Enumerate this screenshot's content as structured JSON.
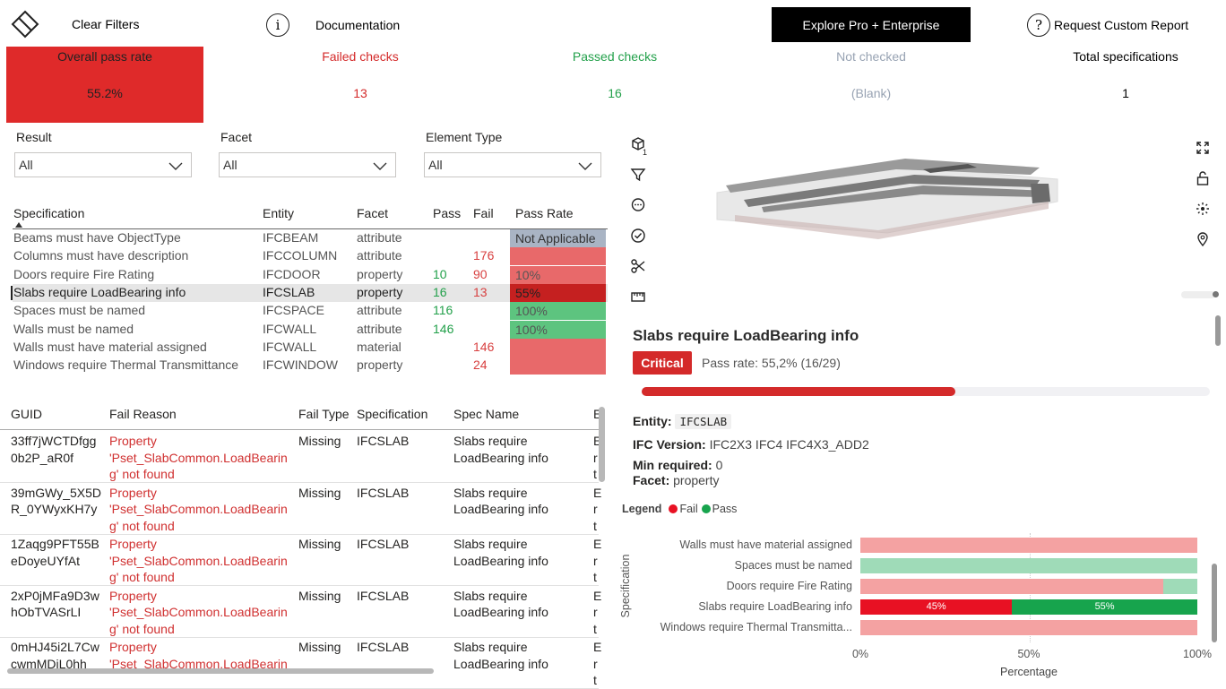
{
  "toolbar": {
    "clear_filters": "Clear Filters",
    "documentation": "Documentation",
    "explore_pro": "Explore Pro + Enterprise",
    "request_report": "Request Custom Report"
  },
  "kpis": {
    "overall": {
      "label": "Overall pass rate",
      "value": "55.2%"
    },
    "failed": {
      "label": "Failed checks",
      "value": "13"
    },
    "passed": {
      "label": "Passed checks",
      "value": "16"
    },
    "not_checked": {
      "label": "Not checked",
      "value": "(Blank)"
    },
    "total": {
      "label": "Total specifications",
      "value": "1"
    }
  },
  "slicers": {
    "result": {
      "label": "Result",
      "value": "All"
    },
    "facet": {
      "label": "Facet",
      "value": "All"
    },
    "element_type": {
      "label": "Element Type",
      "value": "All"
    }
  },
  "spec_table": {
    "headers": {
      "specification": "Specification",
      "entity": "Entity",
      "facet": "Facet",
      "pass": "Pass",
      "fail": "Fail",
      "pass_rate": "Pass Rate"
    },
    "rows": [
      {
        "spec": "Beams must have ObjectType",
        "entity": "IFCBEAM",
        "facet": "attribute",
        "pass": "",
        "fail": "",
        "rate": "Not Applicable"
      },
      {
        "spec": "Columns must have description",
        "entity": "IFCCOLUMN",
        "facet": "attribute",
        "pass": "",
        "fail": "176",
        "rate": ""
      },
      {
        "spec": "Doors require Fire Rating",
        "entity": "IFCDOOR",
        "facet": "property",
        "pass": "10",
        "fail": "90",
        "rate": "10%"
      },
      {
        "spec": "Slabs require LoadBearing info",
        "entity": "IFCSLAB",
        "facet": "property",
        "pass": "16",
        "fail": "13",
        "rate": "55%"
      },
      {
        "spec": "Spaces must be named",
        "entity": "IFCSPACE",
        "facet": "attribute",
        "pass": "116",
        "fail": "",
        "rate": "100%"
      },
      {
        "spec": "Walls must be named",
        "entity": "IFCWALL",
        "facet": "attribute",
        "pass": "146",
        "fail": "",
        "rate": "100%"
      },
      {
        "spec": "Walls must have material assigned",
        "entity": "IFCWALL",
        "facet": "material",
        "pass": "",
        "fail": "146",
        "rate": ""
      },
      {
        "spec": "Windows require Thermal Transmittance",
        "entity": "IFCWINDOW",
        "facet": "property",
        "pass": "",
        "fail": "24",
        "rate": ""
      }
    ]
  },
  "guid_table": {
    "headers": {
      "guid": "GUID",
      "fail_reason": "Fail Reason",
      "fail_type": "Fail Type",
      "specification": "Specification",
      "spec_name": "Spec Name",
      "extra": "E"
    },
    "rows": [
      {
        "guid1": "33ff7jWCTDfgg",
        "guid2": "0b2P_aR0f",
        "r1": "Property",
        "r2": "'Pset_SlabCommon.LoadBearin",
        "r3": "g' not found",
        "type": "Missing",
        "spec": "IFCSLAB",
        "n1": "Slabs require",
        "n2": "LoadBearing info"
      },
      {
        "guid1": "39mGWy_5X5D",
        "guid2": "R_0YWyxKH7y",
        "r1": "Property",
        "r2": "'Pset_SlabCommon.LoadBearin",
        "r3": "g' not found",
        "type": "Missing",
        "spec": "IFCSLAB",
        "n1": "Slabs require",
        "n2": "LoadBearing info"
      },
      {
        "guid1": "1Zaqg9PFT55B",
        "guid2": "eDoyeUYfAt",
        "r1": "Property",
        "r2": "'Pset_SlabCommon.LoadBearin",
        "r3": "g' not found",
        "type": "Missing",
        "spec": "IFCSLAB",
        "n1": "Slabs require",
        "n2": "LoadBearing info"
      },
      {
        "guid1": "2xP0jMFa9D3w",
        "guid2": "hObTVASrLI",
        "r1": "Property",
        "r2": "'Pset_SlabCommon.LoadBearin",
        "r3": "g' not found",
        "type": "Missing",
        "spec": "IFCSLAB",
        "n1": "Slabs require",
        "n2": "LoadBearing info"
      },
      {
        "guid1": "0mHJ45i2L7Cw",
        "guid2": "cwmMDjL0hh",
        "r1": "Property",
        "r2": "'Pset_SlabCommon.LoadBearin",
        "r3": "",
        "type": "Missing",
        "spec": "IFCSLAB",
        "n1": "Slabs require",
        "n2": "LoadBearing info"
      }
    ]
  },
  "viewer": {
    "model_count": "1"
  },
  "detail": {
    "title": "Slabs require LoadBearing info",
    "severity": "Critical",
    "pass_rate_text": "Pass rate: 55,2% (16/29)",
    "progress": 0.552,
    "entity_label": "Entity:",
    "entity_value": "IFCSLAB",
    "ifc_label": "IFC Version:",
    "ifc_value": "IFC2X3 IFC4 IFC4X3_ADD2",
    "min_label": "Min required:",
    "min_value": "0",
    "facet_label": "Facet:",
    "facet_value": "property"
  },
  "legend": {
    "title": "Legend",
    "fail": "Fail",
    "pass": "Pass"
  },
  "colors": {
    "fail": "#e81123",
    "pass": "#17a44d",
    "fail_light": "#f4a2a2",
    "pass_light": "#9fdbb8",
    "kpi_red": "#df2a2a"
  },
  "chart_data": {
    "type": "bar",
    "orientation": "horizontal",
    "stacked": true,
    "ylabel": "Specification",
    "xlabel": "Percentage",
    "x_ticks": [
      "0%",
      "50%",
      "100%"
    ],
    "xlim": [
      0,
      100
    ],
    "categories": [
      "Walls must have material assigned",
      "Spaces must be named",
      "Doors require Fire Rating",
      "Slabs require LoadBearing info",
      "Windows require Thermal Transmitta..."
    ],
    "series": [
      {
        "name": "Fail",
        "values": [
          100,
          0,
          90,
          45,
          100
        ]
      },
      {
        "name": "Pass",
        "values": [
          0,
          100,
          10,
          55,
          0
        ]
      }
    ],
    "data_labels": {
      "3": [
        "45%",
        "55%"
      ]
    },
    "highlighted_category": "Slabs require LoadBearing info"
  }
}
